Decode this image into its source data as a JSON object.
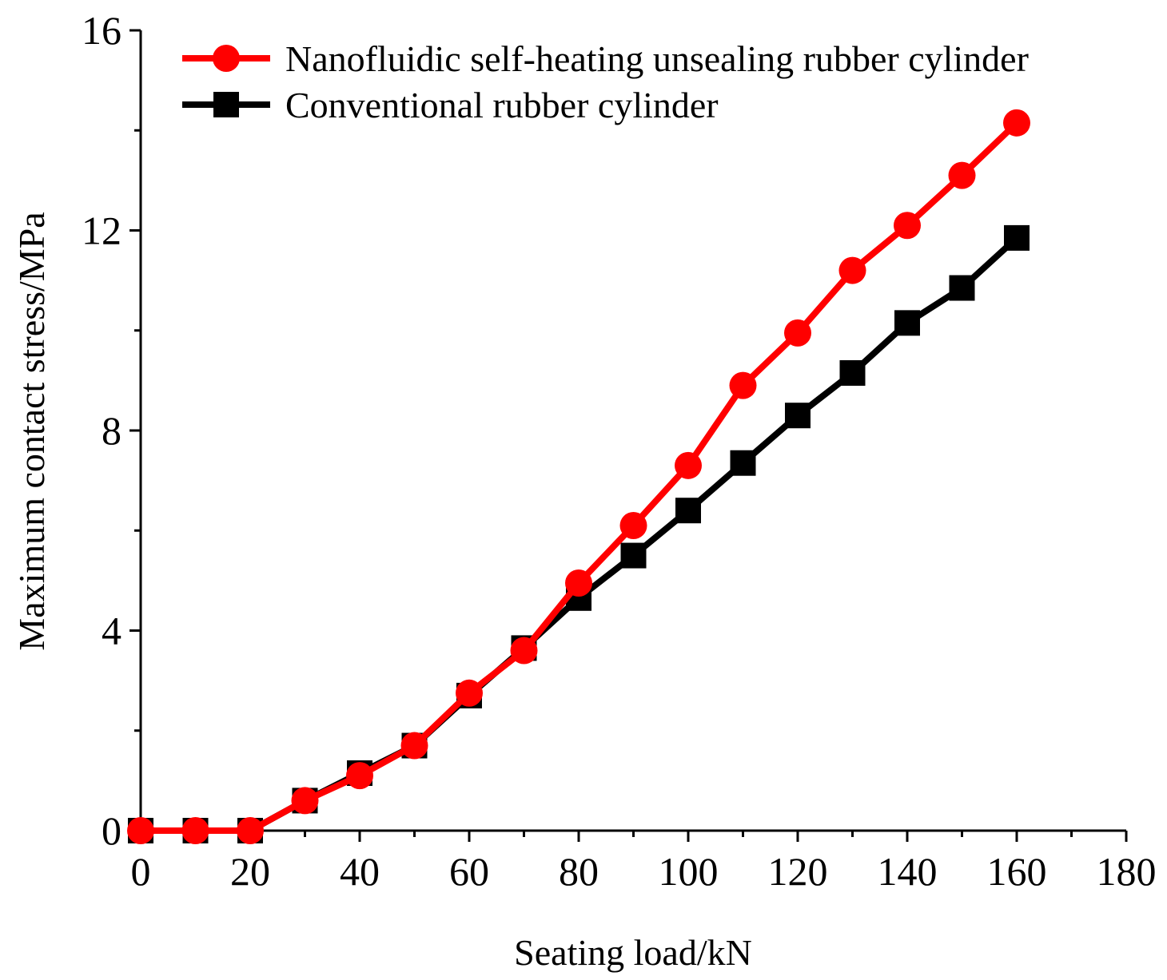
{
  "chart_data": {
    "type": "line",
    "title": "",
    "xlabel": "Seating load/kN",
    "ylabel": "Maximum contact stress/MPa",
    "xlim": [
      0,
      180
    ],
    "ylim": [
      0,
      16
    ],
    "x_ticks": [
      "0",
      "20",
      "40",
      "60",
      "80",
      "100",
      "120",
      "140",
      "160",
      "180"
    ],
    "y_ticks": [
      "0",
      "4",
      "8",
      "12",
      "16"
    ],
    "grid": false,
    "legend_position": "top-left",
    "x": [
      0,
      10,
      20,
      30,
      40,
      50,
      60,
      70,
      80,
      90,
      100,
      110,
      120,
      130,
      140,
      150,
      160
    ],
    "series": [
      {
        "name": "Nanofluidic self-heating unsealing rubber cylinder",
        "color": "#ff0000",
        "marker": "circle",
        "values": [
          0,
          0,
          0,
          0.6,
          1.1,
          1.7,
          2.75,
          3.6,
          4.95,
          6.1,
          7.3,
          8.9,
          9.95,
          11.2,
          12.1,
          13.1,
          14.15
        ]
      },
      {
        "name": "Conventional rubber cylinder",
        "color": "#000000",
        "marker": "square",
        "values": [
          0,
          0,
          0,
          0.6,
          1.15,
          1.7,
          2.7,
          3.65,
          4.65,
          5.5,
          6.4,
          7.35,
          8.3,
          9.15,
          10.15,
          10.85,
          11.85
        ]
      }
    ]
  }
}
